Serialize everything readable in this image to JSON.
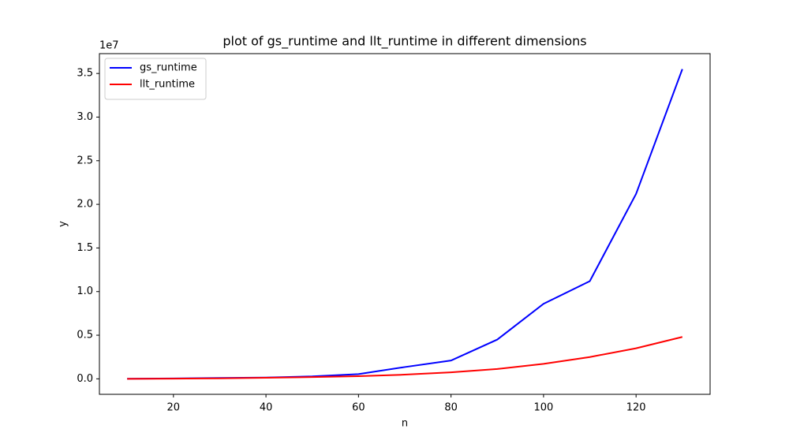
{
  "chart_data": {
    "type": "line",
    "title": "plot of gs_runtime and llt_runtime in different dimensions",
    "x_label": "n",
    "y_label": "y",
    "y_offset_label": "1e7",
    "x": [
      10,
      20,
      30,
      40,
      50,
      60,
      70,
      80,
      90,
      100,
      110,
      120,
      130
    ],
    "series": [
      {
        "name": "gs_runtime",
        "color": "#0000ff",
        "values": [
          5000,
          40000,
          100000,
          150000,
          280000,
          540000,
          1350000,
          2100000,
          4500000,
          8600000,
          11200000,
          21200000,
          35500000
        ]
      },
      {
        "name": "llt_runtime",
        "color": "#ff0000",
        "values": [
          3000,
          20000,
          60000,
          120000,
          200000,
          300000,
          480000,
          750000,
          1130000,
          1720000,
          2500000,
          3500000,
          4800000
        ]
      }
    ],
    "xlim": [
      4,
      136
    ],
    "xticks": [
      20,
      40,
      60,
      80,
      100,
      120
    ],
    "ylim": [
      -1775000,
      37275000
    ],
    "yticks": [
      {
        "value": 0,
        "label": "0.0"
      },
      {
        "value": 5000000,
        "label": "0.5"
      },
      {
        "value": 10000000,
        "label": "1.0"
      },
      {
        "value": 15000000,
        "label": "1.5"
      },
      {
        "value": 20000000,
        "label": "2.0"
      },
      {
        "value": 25000000,
        "label": "2.5"
      },
      {
        "value": 30000000,
        "label": "3.0"
      },
      {
        "value": 35000000,
        "label": "3.5"
      }
    ],
    "legend": "upper left",
    "grid": false
  }
}
